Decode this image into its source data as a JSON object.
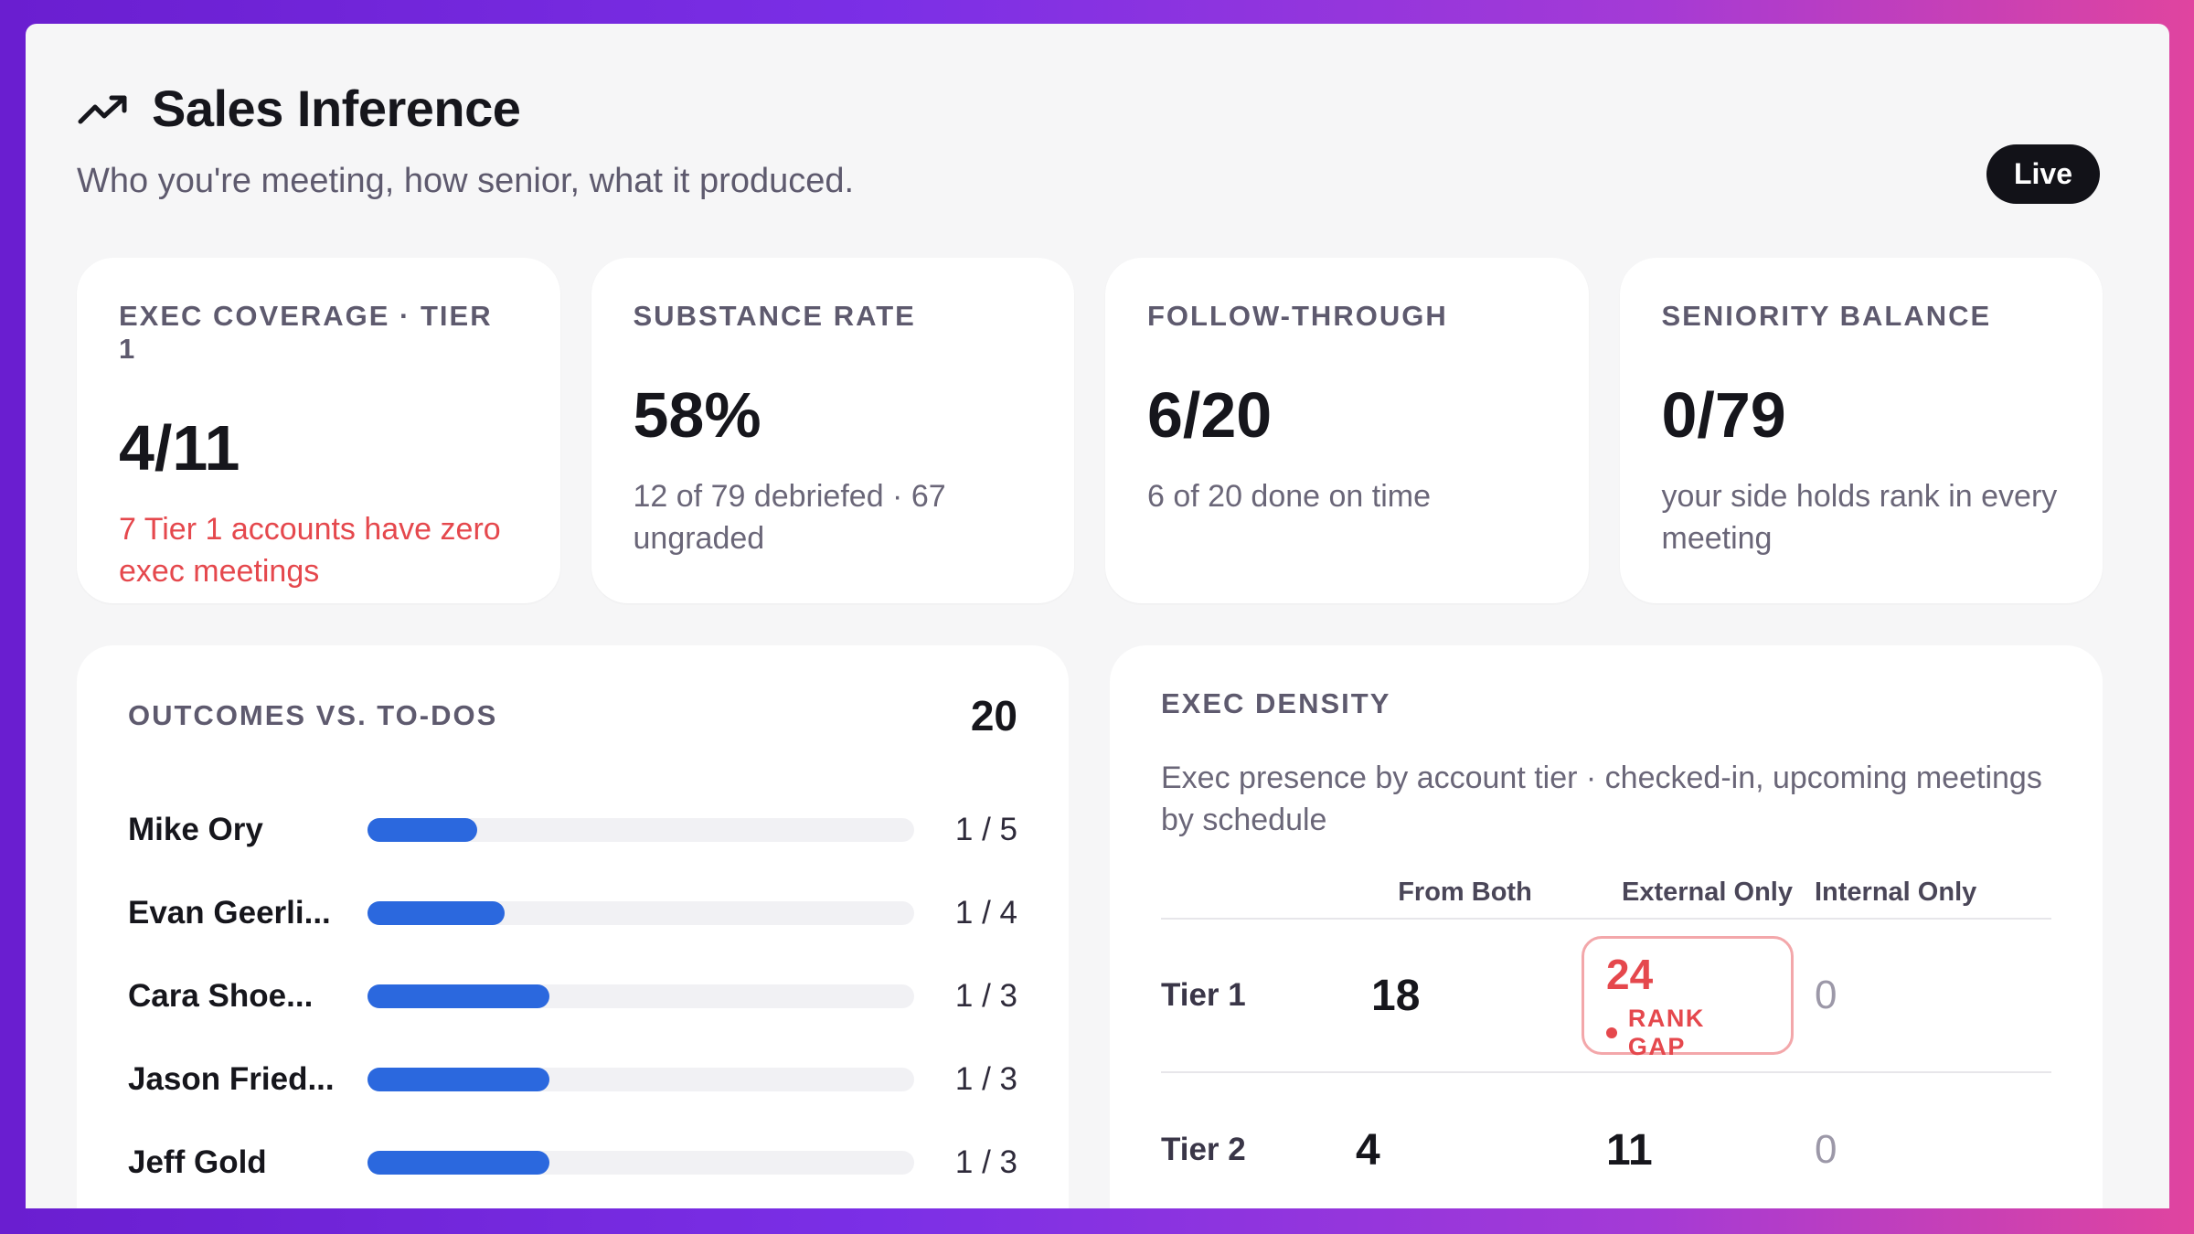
{
  "header": {
    "title": "Sales Inference",
    "subtitle": "Who you're meeting, how senior, what it produced.",
    "badge": "Live",
    "icon": "trend-up-icon"
  },
  "kpis": [
    {
      "label": "EXEC COVERAGE · TIER 1",
      "value": "4/11",
      "note": "7 Tier 1 accounts have zero exec meetings",
      "note_color": "#e5484d"
    },
    {
      "label": "SUBSTANCE RATE",
      "value": "58%",
      "note": "12 of 79 debriefed · 67 ungraded"
    },
    {
      "label": "FOLLOW-THROUGH",
      "value": "6/20",
      "note": "6 of 20 done on time"
    },
    {
      "label": "SENIORITY BALANCE",
      "value": "0/79",
      "note": "your side holds rank in every meeting"
    }
  ],
  "outcomes": {
    "title": "OUTCOMES VS. TO-DOS",
    "count": "20",
    "bar_color": "#2b68de",
    "rows": [
      {
        "name": "Mike Ory",
        "ratio": "1 / 5",
        "fraction": 0.2
      },
      {
        "name": "Evan Geerli...",
        "ratio": "1 / 4",
        "fraction": 0.25
      },
      {
        "name": "Cara Shoe...",
        "ratio": "1 / 3",
        "fraction": 0.333
      },
      {
        "name": "Jason Fried...",
        "ratio": "1 / 3",
        "fraction": 0.333
      },
      {
        "name": "Jeff Gold",
        "ratio": "1 / 3",
        "fraction": 0.333
      }
    ]
  },
  "density": {
    "title": "EXEC DENSITY",
    "description": "Exec presence by account tier · checked-in, upcoming meetings by schedule",
    "columns": [
      "From Both",
      "External Only",
      "Internal Only"
    ],
    "rows": [
      {
        "tier": "Tier 1",
        "both": "18",
        "external": "24",
        "external_flag": "RANK GAP",
        "internal": "0"
      },
      {
        "tier": "Tier 2",
        "both": "4",
        "external": "11",
        "internal": "0"
      }
    ]
  }
}
